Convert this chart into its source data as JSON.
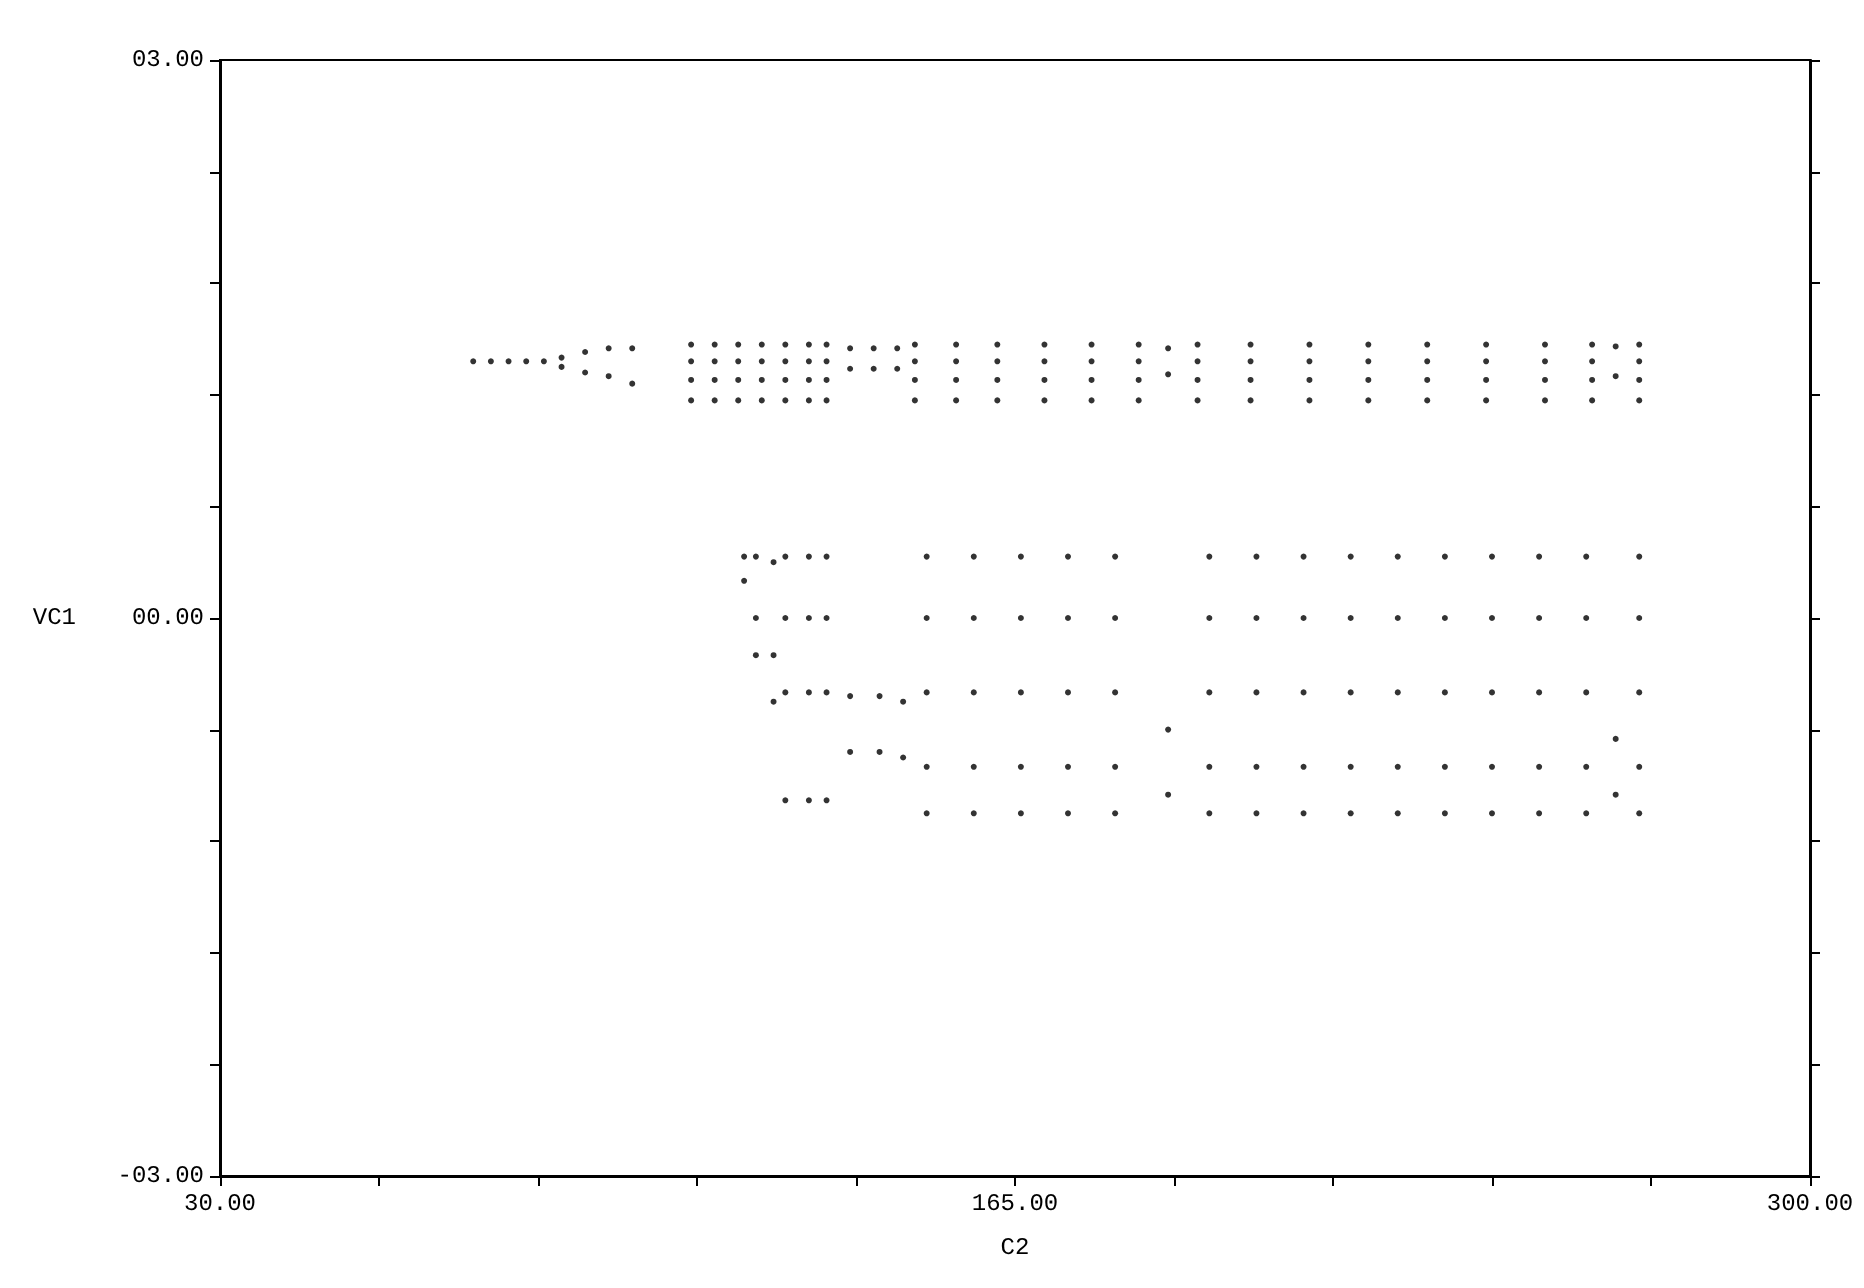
{
  "chart_data": {
    "type": "scatter",
    "xlabel": "C2",
    "ylabel": "VC1",
    "xlim": [
      30,
      300
    ],
    "ylim": [
      -3,
      3
    ],
    "xticks": [
      {
        "value": 30,
        "label": "30.00"
      },
      {
        "value": 57,
        "label": null
      },
      {
        "value": 84,
        "label": null
      },
      {
        "value": 111,
        "label": null
      },
      {
        "value": 138,
        "label": null
      },
      {
        "value": 165,
        "label": "165.00"
      },
      {
        "value": 192,
        "label": null
      },
      {
        "value": 219,
        "label": null
      },
      {
        "value": 246,
        "label": null
      },
      {
        "value": 273,
        "label": null
      },
      {
        "value": 300,
        "label": "300.00"
      }
    ],
    "yticks": [
      {
        "value": -3,
        "label": "-03.00"
      },
      {
        "value": -2.4,
        "label": null
      },
      {
        "value": -1.8,
        "label": null
      },
      {
        "value": -1.2,
        "label": null
      },
      {
        "value": -0.6,
        "label": null
      },
      {
        "value": 0,
        "label": "00.00"
      },
      {
        "value": 0.6,
        "label": null
      },
      {
        "value": 1.2,
        "label": null
      },
      {
        "value": 1.8,
        "label": null
      },
      {
        "value": 2.4,
        "label": null
      },
      {
        "value": 3,
        "label": "03.00"
      }
    ],
    "grid": false,
    "marker": "circle",
    "series": [
      {
        "color": "#000000",
        "x": [
          73,
          76,
          79,
          82,
          85,
          88,
          88,
          92,
          92,
          96,
          96,
          100,
          100,
          110,
          110,
          110,
          110,
          114,
          114,
          114,
          114,
          118,
          118,
          118,
          118,
          122,
          122,
          122,
          122,
          126,
          126,
          126,
          126,
          130,
          130,
          130,
          130,
          133,
          133,
          133,
          133,
          137,
          137,
          141,
          141,
          145,
          145,
          148,
          148,
          148,
          148,
          155,
          155,
          155,
          155,
          162,
          162,
          162,
          162,
          170,
          170,
          170,
          170,
          178,
          178,
          178,
          178,
          186,
          186,
          186,
          186,
          191,
          191,
          196,
          196,
          196,
          196,
          205,
          205,
          205,
          205,
          215,
          215,
          215,
          215,
          225,
          225,
          225,
          225,
          235,
          235,
          235,
          235,
          245,
          245,
          245,
          245,
          255,
          255,
          255,
          255,
          263,
          263,
          263,
          263,
          267,
          267,
          271,
          271,
          271,
          271
        ],
        "values": [
          1.38,
          1.38,
          1.38,
          1.38,
          1.38,
          1.4,
          1.35,
          1.43,
          1.32,
          1.45,
          1.3,
          1.45,
          1.26,
          1.47,
          1.38,
          1.28,
          1.17,
          1.47,
          1.38,
          1.28,
          1.17,
          1.47,
          1.38,
          1.28,
          1.17,
          1.47,
          1.38,
          1.28,
          1.17,
          1.47,
          1.38,
          1.28,
          1.17,
          1.47,
          1.38,
          1.28,
          1.17,
          1.47,
          1.38,
          1.28,
          1.17,
          1.45,
          1.34,
          1.45,
          1.34,
          1.45,
          1.34,
          1.47,
          1.38,
          1.28,
          1.17,
          1.47,
          1.38,
          1.28,
          1.17,
          1.47,
          1.38,
          1.28,
          1.17,
          1.47,
          1.38,
          1.28,
          1.17,
          1.47,
          1.38,
          1.28,
          1.17,
          1.47,
          1.38,
          1.28,
          1.17,
          1.45,
          1.31,
          1.47,
          1.38,
          1.28,
          1.17,
          1.47,
          1.38,
          1.28,
          1.17,
          1.47,
          1.38,
          1.28,
          1.17,
          1.47,
          1.38,
          1.28,
          1.17,
          1.47,
          1.38,
          1.28,
          1.17,
          1.47,
          1.38,
          1.28,
          1.17,
          1.47,
          1.38,
          1.28,
          1.17,
          1.47,
          1.38,
          1.28,
          1.17,
          1.46,
          1.3,
          1.47,
          1.38,
          1.28,
          1.17
        ]
      },
      {
        "color": "#000000",
        "x": [
          119,
          119,
          121,
          121,
          121,
          124,
          124,
          124,
          126,
          126,
          126,
          126,
          130,
          130,
          130,
          130,
          133,
          133,
          133,
          133,
          137,
          137,
          142,
          142,
          146,
          146,
          150,
          150,
          150,
          150,
          150,
          158,
          158,
          158,
          158,
          158,
          166,
          166,
          166,
          166,
          166,
          174,
          174,
          174,
          174,
          174,
          182,
          182,
          182,
          182,
          182,
          191,
          191,
          198,
          198,
          198,
          198,
          198,
          206,
          206,
          206,
          206,
          206,
          214,
          214,
          214,
          214,
          214,
          222,
          222,
          222,
          222,
          222,
          230,
          230,
          230,
          230,
          230,
          238,
          238,
          238,
          238,
          238,
          246,
          246,
          246,
          246,
          246,
          254,
          254,
          254,
          254,
          254,
          262,
          262,
          262,
          262,
          262,
          267,
          267,
          271,
          271,
          271,
          271,
          271
        ],
        "values": [
          0.33,
          0.2,
          0.33,
          0,
          -0.2,
          0.3,
          -0.2,
          -0.45,
          0.33,
          0,
          -0.4,
          -0.98,
          0.33,
          0,
          -0.4,
          -0.98,
          0.33,
          0,
          -0.4,
          -0.98,
          -0.42,
          -0.72,
          -0.42,
          -0.72,
          -0.45,
          -0.75,
          0.33,
          0,
          -0.4,
          -0.8,
          -1.05,
          0.33,
          0,
          -0.4,
          -0.8,
          -1.05,
          0.33,
          0,
          -0.4,
          -0.8,
          -1.05,
          0.33,
          0,
          -0.4,
          -0.8,
          -1.05,
          0.33,
          0,
          -0.4,
          -0.8,
          -1.05,
          -0.6,
          -0.95,
          0.33,
          0,
          -0.4,
          -0.8,
          -1.05,
          0.33,
          0,
          -0.4,
          -0.8,
          -1.05,
          0.33,
          0,
          -0.4,
          -0.8,
          -1.05,
          0.33,
          0,
          -0.4,
          -0.8,
          -1.05,
          0.33,
          0,
          -0.4,
          -0.8,
          -1.05,
          0.33,
          0,
          -0.4,
          -0.8,
          -1.05,
          0.33,
          0,
          -0.4,
          -0.8,
          -1.05,
          0.33,
          0,
          -0.4,
          -0.8,
          -1.05,
          0.33,
          0,
          -0.4,
          -0.8,
          -1.05,
          -0.65,
          -0.95,
          0.33,
          0,
          -0.4,
          -0.8,
          -1.05
        ]
      }
    ]
  }
}
